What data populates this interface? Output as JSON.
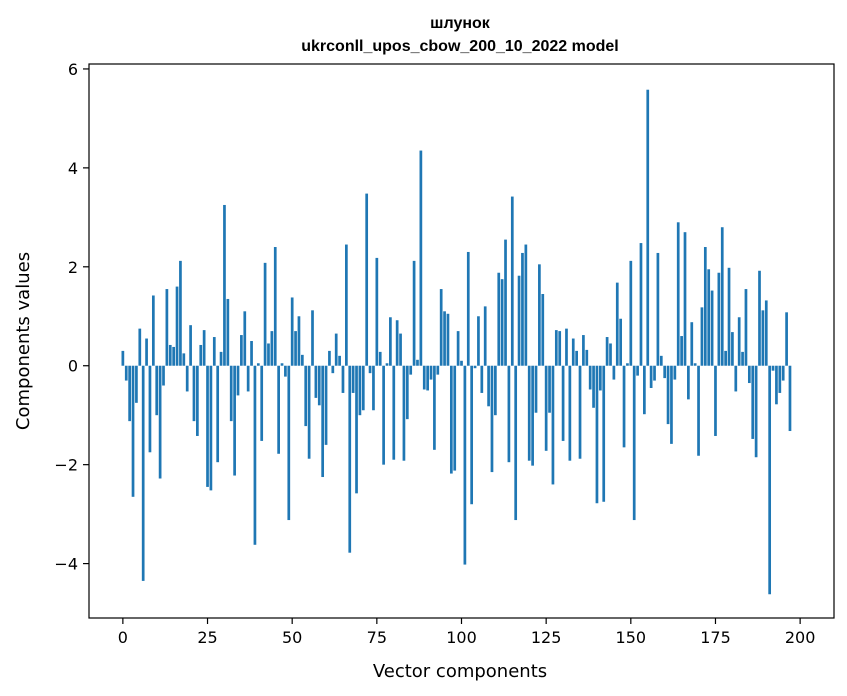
{
  "chart_data": {
    "type": "bar",
    "title": "шлунок",
    "subtitle": "ukrconll_upos_cbow_200_10_2022 model",
    "xlabel": "Vector components",
    "ylabel": "Components values",
    "xlim": [
      -10,
      210
    ],
    "ylim": [
      -5.1,
      6.1
    ],
    "xticks": [
      0,
      25,
      50,
      75,
      100,
      125,
      150,
      175,
      200
    ],
    "yticks": [
      -4,
      -2,
      0,
      2,
      4,
      6
    ],
    "xtick_labels": [
      "0",
      "25",
      "50",
      "75",
      "100",
      "125",
      "150",
      "175",
      "200"
    ],
    "ytick_labels": [
      "−4",
      "−2",
      "0",
      "2",
      "4",
      "6"
    ],
    "bar_color": "#1f77b4",
    "grid": false,
    "values": [
      0.3,
      -0.3,
      -1.12,
      -2.65,
      -0.75,
      0.75,
      -4.35,
      0.55,
      -1.75,
      1.42,
      -1.0,
      -2.28,
      -0.4,
      1.55,
      0.42,
      0.38,
      1.6,
      2.12,
      0.25,
      -0.52,
      0.82,
      -1.12,
      -1.42,
      0.42,
      0.72,
      -2.45,
      -2.52,
      0.58,
      -1.95,
      0.28,
      3.25,
      1.35,
      -1.12,
      -2.22,
      -0.6,
      0.62,
      1.1,
      -0.52,
      0.5,
      -3.62,
      0.05,
      -1.52,
      2.08,
      0.45,
      0.7,
      2.4,
      -1.78,
      0.05,
      -0.22,
      -3.12,
      1.38,
      0.7,
      1.0,
      0.22,
      -1.22,
      -1.88,
      1.12,
      -0.65,
      -0.8,
      -2.25,
      -1.6,
      0.3,
      -0.15,
      0.65,
      0.2,
      -0.55,
      2.45,
      -3.78,
      -0.55,
      -2.58,
      -1.0,
      -0.9,
      3.48,
      -0.15,
      -0.9,
      2.18,
      0.28,
      -2.0,
      0.05,
      0.98,
      -1.9,
      0.92,
      0.65,
      -1.92,
      -1.08,
      -0.18,
      2.12,
      0.12,
      4.35,
      -0.48,
      -0.5,
      -0.28,
      -1.7,
      -0.18,
      1.55,
      1.1,
      1.05,
      -2.18,
      -2.12,
      0.7,
      0.1,
      -4.02,
      2.3,
      -2.8,
      -0.05,
      1.0,
      -0.55,
      1.2,
      -0.82,
      -2.15,
      -1.0,
      1.88,
      1.75,
      2.55,
      -1.95,
      3.42,
      -3.12,
      1.82,
      2.28,
      2.45,
      -1.92,
      -2.02,
      -0.95,
      2.05,
      1.45,
      -1.72,
      -0.95,
      -2.4,
      0.72,
      0.7,
      -1.52,
      0.75,
      -1.92,
      0.55,
      0.3,
      -1.88,
      0.62,
      0.32,
      -0.48,
      -0.85,
      -2.78,
      -0.5,
      -2.75,
      0.58,
      0.45,
      -0.28,
      1.68,
      0.95,
      -1.65,
      0.05,
      2.12,
      -3.12,
      -0.2,
      2.48,
      -0.98,
      5.58,
      -0.45,
      -0.3,
      2.28,
      0.2,
      -0.25,
      -1.18,
      -1.58,
      -0.28,
      2.9,
      0.6,
      2.7,
      -0.68,
      0.88,
      0.05,
      -1.82,
      1.18,
      2.4,
      1.95,
      1.52,
      -1.42,
      1.88,
      2.8,
      0.3,
      1.98,
      0.68,
      -0.52,
      0.98,
      0.28,
      1.55,
      -0.35,
      -1.48,
      -1.85,
      1.92,
      1.12,
      1.32,
      -4.62,
      -0.1,
      -0.78,
      -0.55,
      -0.3,
      1.08,
      -1.32
    ]
  }
}
